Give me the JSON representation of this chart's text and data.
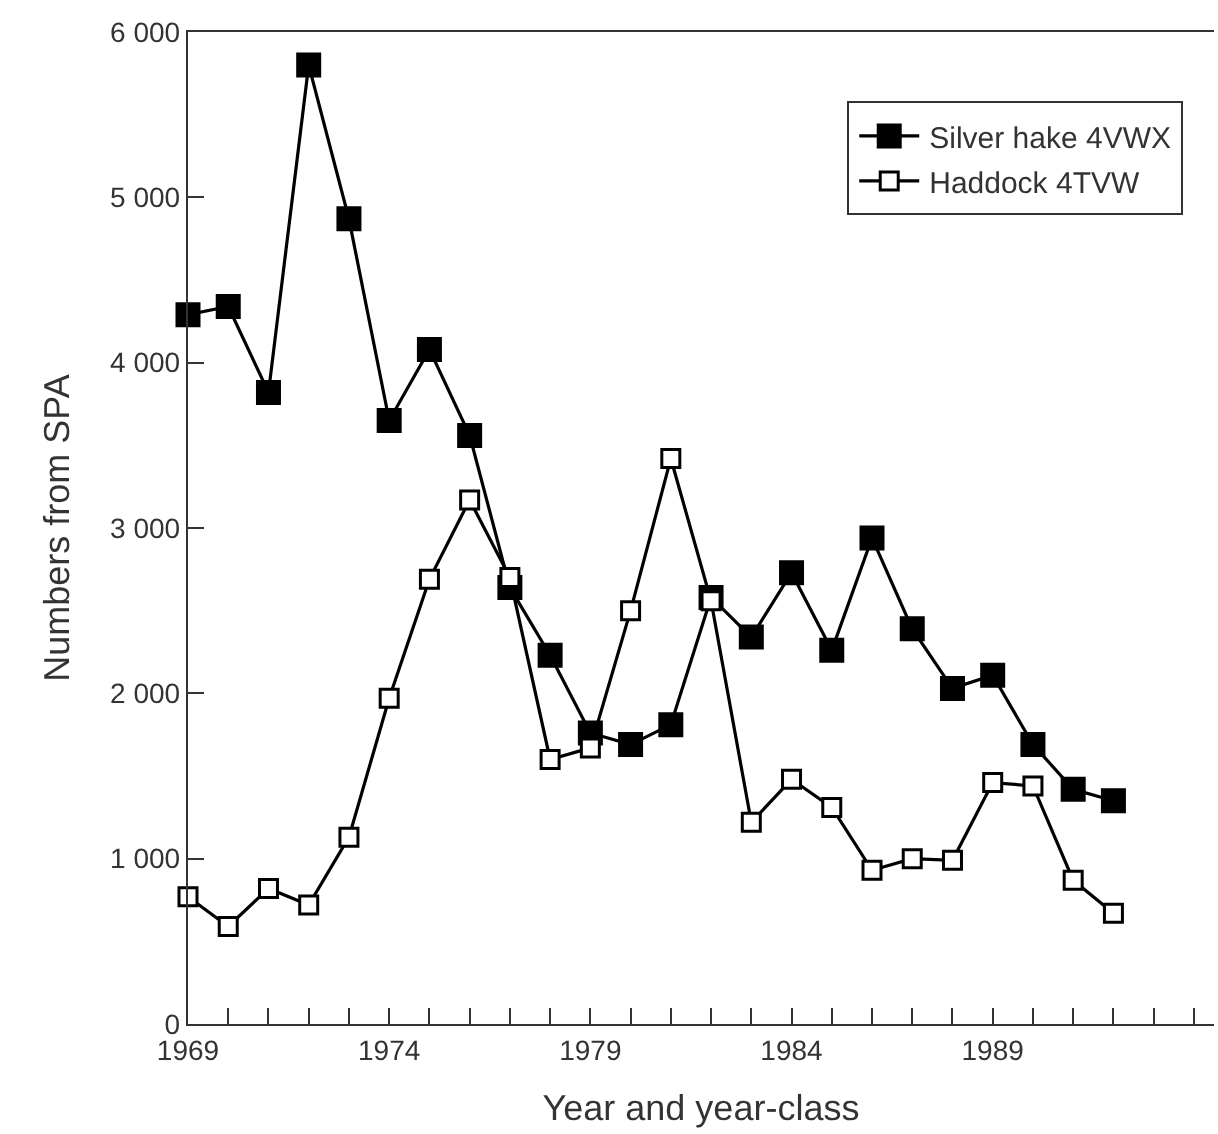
{
  "chart_data": {
    "type": "line",
    "xlabel": "Year and year-class",
    "ylabel": "Numbers from SPA",
    "x": [
      1969,
      1970,
      1971,
      1972,
      1973,
      1974,
      1975,
      1976,
      1977,
      1978,
      1979,
      1980,
      1981,
      1982,
      1983,
      1984,
      1985,
      1986,
      1987,
      1988,
      1989,
      1990,
      1991,
      1992
    ],
    "series": [
      {
        "name": "Silver hake 4VWX",
        "color": "#000000",
        "values": [
          4290,
          4340,
          3820,
          5800,
          4870,
          3650,
          4080,
          3560,
          2640,
          2230,
          1760,
          1690,
          1810,
          2580,
          2340,
          2730,
          2260,
          2940,
          2390,
          2030,
          2110,
          1690,
          1420,
          1350
        ]
      },
      {
        "name": "Haddock 4TVW",
        "color": "#000000",
        "values": [
          770,
          590,
          820,
          720,
          1130,
          1970,
          2690,
          3170,
          2700,
          1600,
          1670,
          2500,
          3420,
          2560,
          1220,
          1480,
          1310,
          930,
          1000,
          990,
          1460,
          1440,
          870,
          670
        ]
      }
    ],
    "xlim": [
      1969,
      1994.5
    ],
    "xticks": [
      1969,
      {
        "value": 1970,
        "label": null
      },
      {
        "value": 1971,
        "label": null
      },
      {
        "value": 1972,
        "label": null
      },
      {
        "value": 1973,
        "label": null
      },
      1974,
      {
        "value": 1975,
        "label": null
      },
      {
        "value": 1976,
        "label": null
      },
      {
        "value": 1977,
        "label": null
      },
      {
        "value": 1978,
        "label": null
      },
      1979,
      {
        "value": 1980,
        "label": null
      },
      {
        "value": 1981,
        "label": null
      },
      {
        "value": 1982,
        "label": null
      },
      {
        "value": 1983,
        "label": null
      },
      1984,
      {
        "value": 1985,
        "label": null
      },
      {
        "value": 1986,
        "label": null
      },
      {
        "value": 1987,
        "label": null
      },
      {
        "value": 1988,
        "label": null
      },
      1989,
      {
        "value": 1990,
        "label": null
      },
      {
        "value": 1991,
        "label": null
      },
      {
        "value": 1992,
        "label": null
      },
      {
        "value": 1993,
        "label": null
      },
      {
        "value": 1994,
        "label": null
      }
    ],
    "ylim": [
      0,
      6000
    ],
    "yticks": [
      0,
      {
        "value": 1000,
        "label": "1 000"
      },
      {
        "value": 2000,
        "label": "2 000"
      },
      {
        "value": 3000,
        "label": "3 000"
      },
      {
        "value": 4000,
        "label": "4 000"
      },
      {
        "value": 5000,
        "label": "5 000"
      },
      {
        "value": 6000,
        "label": "6 000"
      }
    ],
    "legend": "top right",
    "marker": "square",
    "line_style": "solid"
  }
}
